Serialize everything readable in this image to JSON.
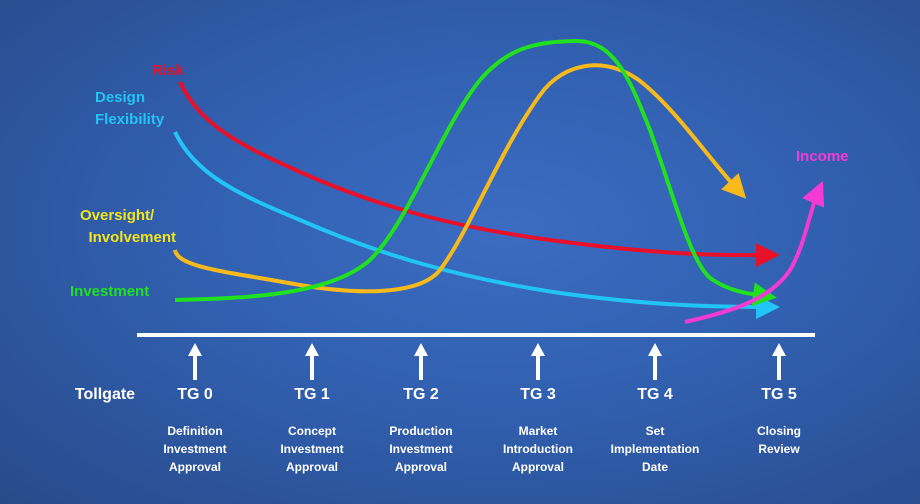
{
  "colors": {
    "risk": "#e8102a",
    "design": "#22c4f5",
    "oversight_text": "#f2e51c",
    "oversight_curve": "#f8b91a",
    "investment": "#20e020",
    "income": "#f43ad4",
    "axis": "#ffffff"
  },
  "labels": {
    "risk": "Risk",
    "design_1": "Design",
    "design_2": "Flexibility",
    "oversight_1": "Oversight/",
    "oversight_2": "Involvement",
    "investment": "Investment",
    "income": "Income"
  },
  "timeline": {
    "label": "Tollgate",
    "gates": [
      {
        "name": "TG 0",
        "desc": [
          "Definition",
          "Investment",
          "Approval"
        ]
      },
      {
        "name": "TG 1",
        "desc": [
          "Concept",
          "Investment",
          "Approval"
        ]
      },
      {
        "name": "TG 2",
        "desc": [
          "Production",
          "Investment",
          "Approval"
        ]
      },
      {
        "name": "TG 3",
        "desc": [
          "Market",
          "Introduction",
          "Approval"
        ]
      },
      {
        "name": "TG 4",
        "desc": [
          "Set",
          "Implementation",
          "Date"
        ]
      },
      {
        "name": "TG 5",
        "desc": [
          "Closing",
          "Review"
        ]
      }
    ]
  }
}
